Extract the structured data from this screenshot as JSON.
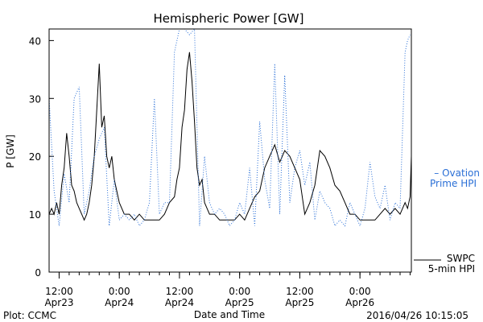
{
  "chart_data": {
    "type": "line",
    "title": "Hemispheric Power [GW]",
    "xlabel": "Date and Time",
    "ylabel": "P [GW]",
    "ylim": [
      0,
      42
    ],
    "y_ticks": [
      0,
      10,
      20,
      30,
      40
    ],
    "x_ticks": [
      {
        "time": "2016-04-23 12:00",
        "line1": "12:00",
        "line2": "Apr23"
      },
      {
        "time": "2016-04-24 00:00",
        "line1": "0:00",
        "line2": "Apr24"
      },
      {
        "time": "2016-04-24 12:00",
        "line1": "12:00",
        "line2": "Apr24"
      },
      {
        "time": "2016-04-25 00:00",
        "line1": "0:00",
        "line2": "Apr25"
      },
      {
        "time": "2016-04-25 12:00",
        "line1": "12:00",
        "line2": "Apr25"
      },
      {
        "time": "2016-04-26 00:00",
        "line1": "0:00",
        "line2": "Apr26"
      }
    ],
    "x_range": [
      "2016-04-23 10:00",
      "2016-04-26 10:15"
    ],
    "grid": false,
    "series": [
      {
        "name": "SWPC 5-min HPI",
        "color": "#000000",
        "style": "solid",
        "x": [
          "2016-04-23 10:00",
          "2016-04-23 10:30",
          "2016-04-23 11:00",
          "2016-04-23 11:30",
          "2016-04-23 12:00",
          "2016-04-23 12:30",
          "2016-04-23 13:00",
          "2016-04-23 13:30",
          "2016-04-23 14:00",
          "2016-04-23 14:30",
          "2016-04-23 15:00",
          "2016-04-23 15:30",
          "2016-04-23 16:00",
          "2016-04-23 16:30",
          "2016-04-23 17:00",
          "2016-04-23 17:30",
          "2016-04-23 18:00",
          "2016-04-23 18:30",
          "2016-04-23 19:00",
          "2016-04-23 19:30",
          "2016-04-23 20:00",
          "2016-04-23 20:30",
          "2016-04-23 21:00",
          "2016-04-23 21:30",
          "2016-04-23 22:00",
          "2016-04-23 22:30",
          "2016-04-23 23:00",
          "2016-04-24 00:00",
          "2016-04-24 01:00",
          "2016-04-24 02:00",
          "2016-04-24 03:00",
          "2016-04-24 04:00",
          "2016-04-24 05:00",
          "2016-04-24 06:00",
          "2016-04-24 07:00",
          "2016-04-24 08:00",
          "2016-04-24 09:00",
          "2016-04-24 10:00",
          "2016-04-24 11:00",
          "2016-04-24 11:30",
          "2016-04-24 12:00",
          "2016-04-24 12:30",
          "2016-04-24 13:00",
          "2016-04-24 13:30",
          "2016-04-24 14:00",
          "2016-04-24 14:30",
          "2016-04-24 15:00",
          "2016-04-24 15:30",
          "2016-04-24 16:00",
          "2016-04-24 16:30",
          "2016-04-24 17:00",
          "2016-04-24 17:30",
          "2016-04-24 18:00",
          "2016-04-24 18:30",
          "2016-04-24 19:00",
          "2016-04-24 20:00",
          "2016-04-24 21:00",
          "2016-04-24 22:00",
          "2016-04-24 23:00",
          "2016-04-25 00:00",
          "2016-04-25 01:00",
          "2016-04-25 02:00",
          "2016-04-25 03:00",
          "2016-04-25 04:00",
          "2016-04-25 05:00",
          "2016-04-25 06:00",
          "2016-04-25 07:00",
          "2016-04-25 08:00",
          "2016-04-25 09:00",
          "2016-04-25 10:00",
          "2016-04-25 11:00",
          "2016-04-25 12:00",
          "2016-04-25 13:00",
          "2016-04-25 14:00",
          "2016-04-25 15:00",
          "2016-04-25 16:00",
          "2016-04-25 17:00",
          "2016-04-25 18:00",
          "2016-04-25 19:00",
          "2016-04-25 20:00",
          "2016-04-25 21:00",
          "2016-04-25 22:00",
          "2016-04-25 23:00",
          "2016-04-26 00:00",
          "2016-04-26 01:00",
          "2016-04-26 02:00",
          "2016-04-26 03:00",
          "2016-04-26 04:00",
          "2016-04-26 05:00",
          "2016-04-26 06:00",
          "2016-04-26 07:00",
          "2016-04-26 08:00",
          "2016-04-26 09:00",
          "2016-04-26 09:30",
          "2016-04-26 10:00",
          "2016-04-26 10:15"
        ],
        "values": [
          10,
          11,
          10,
          12,
          10,
          15,
          18,
          24,
          20,
          15,
          14,
          12,
          11,
          10,
          9,
          10,
          12,
          15,
          20,
          28,
          36,
          25,
          27,
          20,
          18,
          20,
          16,
          12,
          10,
          10,
          9,
          10,
          9,
          9,
          9,
          9,
          10,
          12,
          13,
          16,
          18,
          25,
          28,
          35,
          38,
          33,
          26,
          18,
          15,
          16,
          12,
          11,
          10,
          10,
          10,
          9,
          9,
          9,
          9,
          10,
          9,
          11,
          13,
          14,
          18,
          20,
          22,
          19,
          21,
          20,
          18,
          16,
          10,
          12,
          15,
          21,
          20,
          18,
          15,
          14,
          12,
          10,
          10,
          9,
          9,
          9,
          9,
          10,
          11,
          10,
          11,
          10,
          12,
          11,
          13,
          20
        ]
      },
      {
        "name": "Ovation Prime HPI",
        "color": "#2a6fd6",
        "style": "dotted",
        "x": [
          "2016-04-23 10:00",
          "2016-04-23 11:00",
          "2016-04-23 12:00",
          "2016-04-23 13:00",
          "2016-04-23 14:00",
          "2016-04-23 15:00",
          "2016-04-23 16:00",
          "2016-04-23 17:00",
          "2016-04-23 18:00",
          "2016-04-23 19:00",
          "2016-04-23 20:00",
          "2016-04-23 21:00",
          "2016-04-23 22:00",
          "2016-04-23 23:00",
          "2016-04-24 00:00",
          "2016-04-24 01:00",
          "2016-04-24 02:00",
          "2016-04-24 03:00",
          "2016-04-24 04:00",
          "2016-04-24 05:00",
          "2016-04-24 06:00",
          "2016-04-24 07:00",
          "2016-04-24 08:00",
          "2016-04-24 09:00",
          "2016-04-24 10:00",
          "2016-04-24 11:00",
          "2016-04-24 12:00",
          "2016-04-24 13:00",
          "2016-04-24 14:00",
          "2016-04-24 15:00",
          "2016-04-24 16:00",
          "2016-04-24 17:00",
          "2016-04-24 18:00",
          "2016-04-24 19:00",
          "2016-04-24 20:00",
          "2016-04-24 21:00",
          "2016-04-24 22:00",
          "2016-04-24 23:00",
          "2016-04-25 00:00",
          "2016-04-25 01:00",
          "2016-04-25 02:00",
          "2016-04-25 03:00",
          "2016-04-25 04:00",
          "2016-04-25 05:00",
          "2016-04-25 06:00",
          "2016-04-25 07:00",
          "2016-04-25 08:00",
          "2016-04-25 09:00",
          "2016-04-25 10:00",
          "2016-04-25 11:00",
          "2016-04-25 12:00",
          "2016-04-25 13:00",
          "2016-04-25 14:00",
          "2016-04-25 15:00",
          "2016-04-25 16:00",
          "2016-04-25 17:00",
          "2016-04-25 18:00",
          "2016-04-25 19:00",
          "2016-04-25 20:00",
          "2016-04-25 21:00",
          "2016-04-25 22:00",
          "2016-04-25 23:00",
          "2016-04-26 00:00",
          "2016-04-26 01:00",
          "2016-04-26 02:00",
          "2016-04-26 03:00",
          "2016-04-26 04:00",
          "2016-04-26 05:00",
          "2016-04-26 06:00",
          "2016-04-26 07:00",
          "2016-04-26 08:00",
          "2016-04-26 09:00",
          "2016-04-26 09:30",
          "2016-04-26 10:00"
        ],
        "values": [
          30,
          14,
          8,
          17,
          12,
          30,
          32,
          10,
          14,
          20,
          23,
          25,
          8,
          16,
          9,
          10,
          9,
          10,
          8,
          9,
          12,
          30,
          10,
          12,
          12,
          38,
          42,
          42,
          41,
          42,
          8,
          20,
          12,
          10,
          11,
          10,
          8,
          9,
          12,
          10,
          18,
          8,
          26,
          16,
          11,
          36,
          10,
          34,
          12,
          18,
          21,
          15,
          19,
          9,
          14,
          12,
          11,
          8,
          9,
          8,
          12,
          10,
          8,
          11,
          19,
          13,
          11,
          15,
          9,
          12,
          11,
          38,
          40,
          41
        ]
      }
    ],
    "legend": {
      "placement": "right",
      "entries": [
        {
          "series": "Ovation Prime HPI",
          "line1": "– Ovation",
          "line2": "Prime HPI"
        },
        {
          "series": "SWPC 5-min HPI",
          "line1": "SWPC",
          "line2": "5-min HPI"
        }
      ]
    },
    "footer": {
      "left": "Plot: CCMC",
      "right": "2016/04/26 10:15:05"
    }
  }
}
